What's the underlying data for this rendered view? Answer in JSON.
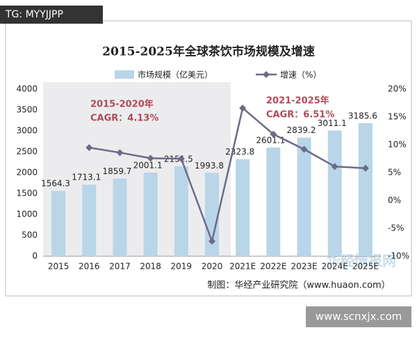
{
  "watermark_top": "TG: MYYJJPP",
  "watermark_bottom": "www.scnxjx.com",
  "watermark_mid": "华经情报网",
  "chart_data": {
    "type": "bar_line",
    "title": "2015-2025年全球茶饮市场规模及增速",
    "categories": [
      "2015",
      "2016",
      "2017",
      "2018",
      "2019",
      "2020",
      "2021E",
      "2022E",
      "2023E",
      "2024E",
      "2025E"
    ],
    "series": [
      {
        "name": "市场规模（亿美元）",
        "color": "#b9d5e8",
        "type": "bar",
        "values": [
          1564.3,
          1713.1,
          1859.7,
          2001.1,
          2151.5,
          1993.8,
          2323.8,
          2601.1,
          2839.2,
          3011.1,
          3185.6
        ]
      },
      {
        "name": "增速（%）",
        "color": "#6b6b88",
        "type": "line",
        "axis": "y2",
        "values": [
          null,
          9.5,
          8.6,
          7.6,
          7.5,
          -7.3,
          16.6,
          11.9,
          9.2,
          6.1,
          5.8
        ]
      }
    ],
    "ylim": [
      0,
      4000
    ],
    "yticks": [
      0,
      500,
      1000,
      1500,
      2000,
      2500,
      3000,
      3500,
      4000
    ],
    "y2lim": [
      -10,
      20
    ],
    "y2ticks": [
      {
        "value": -10,
        "label": "-10%"
      },
      {
        "value": -5,
        "label": "-5%"
      },
      {
        "value": 0,
        "label": "0%"
      },
      {
        "value": 5,
        "label": "5%"
      },
      {
        "value": 10,
        "label": "10%"
      },
      {
        "value": 15,
        "label": "15%"
      },
      {
        "value": 20,
        "label": "20%"
      }
    ],
    "annotations": [
      "2015-2020年",
      "CAGR：4.13%",
      "2021-2025年",
      "CAGR：6.51%"
    ],
    "source": "制图：华经产业研究院（www.huaon.com）"
  }
}
